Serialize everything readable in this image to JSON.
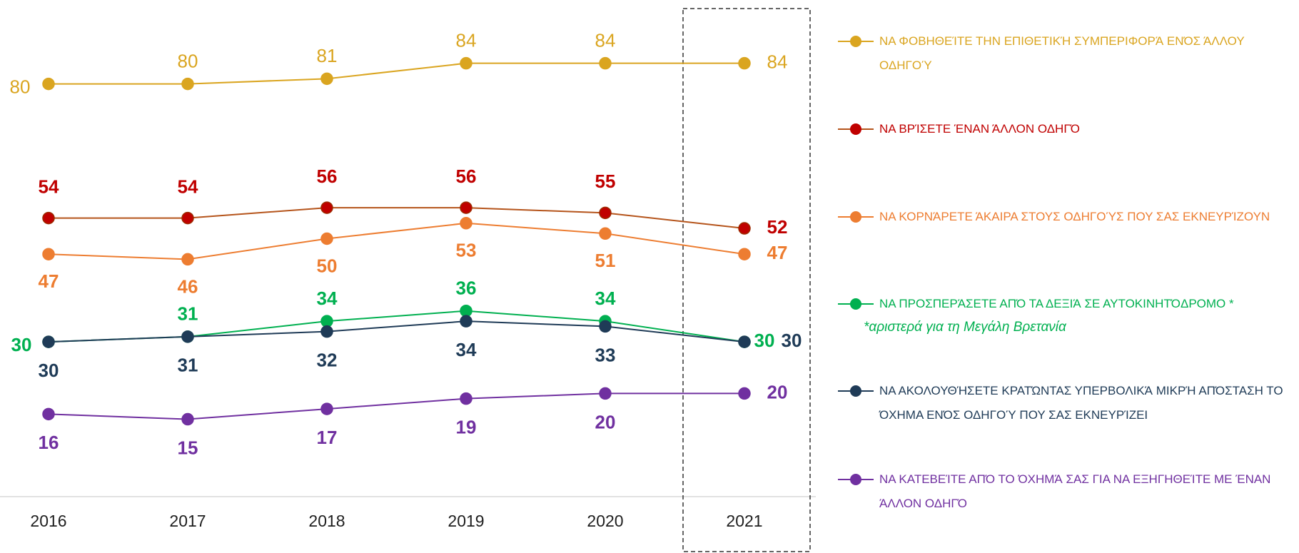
{
  "chart_data": {
    "type": "line",
    "categories": [
      "2016",
      "2017",
      "2018",
      "2019",
      "2020",
      "2021"
    ],
    "series": [
      {
        "name": "ΝΑ ΦΟΒΗΘΕΊΤΕ ΤΗΝ ΕΠΙΘΕΤΙΚΉ ΣΥΜΠΕΡΙΦΟΡΆ ΕΝΌΣ ΆΛΛΟΥ ΟΔΗΓΟΎ",
        "color": "#daa520",
        "values": [
          80,
          80,
          81,
          84,
          84,
          84
        ]
      },
      {
        "name": "ΝΑ ΒΡΊΣΕΤΕ ΈΝΑΝ ΆΛΛΟΝ ΟΔΗΓΌ",
        "color": "#c00000",
        "values": [
          54,
          54,
          56,
          56,
          55,
          52
        ]
      },
      {
        "name": "ΝΑ ΚΟΡΝΆΡΕΤΕ ΆΚΑΙΡΑ ΣΤΟΥΣ ΟΔΗΓΟΎΣ ΠΟΥ ΣΑΣ ΕΚΝΕΥΡΊΖΟΥΝ",
        "color": "#ed7d31",
        "values": [
          47,
          46,
          50,
          53,
          51,
          47
        ]
      },
      {
        "name": "ΝΑ ΠΡΟΣΠΕΡΆΣΕΤΕ ΑΠΌ ΤΑ ΔΕΞΙΆ ΣΕ ΑΥΤΟΚΙΝΗΤΌΔΡΟΜΟ *",
        "color": "#00b050",
        "values": [
          30,
          31,
          34,
          36,
          34,
          30
        ],
        "note": "*αριστερά για τη Μεγάλη Βρετανία"
      },
      {
        "name": "ΝΑ ΑΚΟΛΟΥΘΉΣΕΤΕ ΚΡΑΤΏΝΤΑΣ ΥΠΕΡΒΟΛΙΚΆ ΜΙΚΡΉ ΑΠΌΣΤΑΣΗ ΤΟ ΌΧΗΜΑ ΕΝΌΣ ΟΔΗΓΟΎ ΠΟΥ ΣΑΣ ΕΚΝΕΥΡΊΖΕΙ",
        "color": "#1f3b57",
        "values": [
          30,
          31,
          32,
          34,
          33,
          30
        ]
      },
      {
        "name": "ΝΑ ΚΑΤΕΒΕΊΤΕ ΑΠΌ ΤΟ ΌΧΗΜΆ ΣΑΣ ΓΙΑ ΝΑ ΕΞΗΓΗΘΕΊΤΕ ΜΕ ΈΝΑΝ ΆΛΛΟΝ ΟΔΗΓΌ",
        "color": "#7030a0",
        "values": [
          16,
          15,
          17,
          19,
          20,
          20
        ]
      }
    ]
  }
}
